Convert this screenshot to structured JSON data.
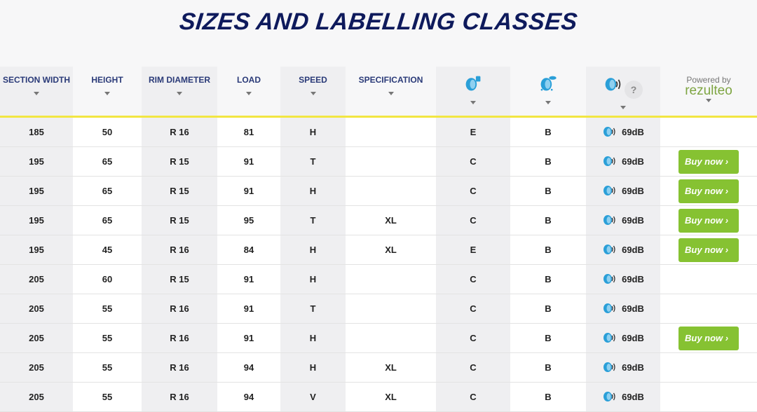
{
  "title": "SIZES AND LABELLING CLASSES",
  "columns": [
    "SECTION WIDTH",
    "HEIGHT",
    "RIM DIAMETER",
    "LOAD",
    "SPEED",
    "SPECIFICATION"
  ],
  "icon_columns": [
    "fuel-efficiency-icon",
    "wet-grip-icon",
    "noise-icon"
  ],
  "help_label": "?",
  "powered_by": "Powered by",
  "brand": "rezulteo",
  "buy_label": "Buy now ›",
  "colors": {
    "title": "#0e1a5c",
    "accent_line": "#f2e642",
    "buy_button": "#86c232",
    "icon_blue": "#2a9fd8"
  },
  "rows": [
    {
      "width": "185",
      "height": "50",
      "rim": "R 16",
      "load": "81",
      "speed": "H",
      "spec": "",
      "fuel": "E",
      "wet": "B",
      "noise": "69dB",
      "buy": false
    },
    {
      "width": "195",
      "height": "65",
      "rim": "R 15",
      "load": "91",
      "speed": "T",
      "spec": "",
      "fuel": "C",
      "wet": "B",
      "noise": "69dB",
      "buy": true
    },
    {
      "width": "195",
      "height": "65",
      "rim": "R 15",
      "load": "91",
      "speed": "H",
      "spec": "",
      "fuel": "C",
      "wet": "B",
      "noise": "69dB",
      "buy": true
    },
    {
      "width": "195",
      "height": "65",
      "rim": "R 15",
      "load": "95",
      "speed": "T",
      "spec": "XL",
      "fuel": "C",
      "wet": "B",
      "noise": "69dB",
      "buy": true
    },
    {
      "width": "195",
      "height": "45",
      "rim": "R 16",
      "load": "84",
      "speed": "H",
      "spec": "XL",
      "fuel": "E",
      "wet": "B",
      "noise": "69dB",
      "buy": true
    },
    {
      "width": "205",
      "height": "60",
      "rim": "R 15",
      "load": "91",
      "speed": "H",
      "spec": "",
      "fuel": "C",
      "wet": "B",
      "noise": "69dB",
      "buy": false
    },
    {
      "width": "205",
      "height": "55",
      "rim": "R 16",
      "load": "91",
      "speed": "T",
      "spec": "",
      "fuel": "C",
      "wet": "B",
      "noise": "69dB",
      "buy": false
    },
    {
      "width": "205",
      "height": "55",
      "rim": "R 16",
      "load": "91",
      "speed": "H",
      "spec": "",
      "fuel": "C",
      "wet": "B",
      "noise": "69dB",
      "buy": true
    },
    {
      "width": "205",
      "height": "55",
      "rim": "R 16",
      "load": "94",
      "speed": "H",
      "spec": "XL",
      "fuel": "C",
      "wet": "B",
      "noise": "69dB",
      "buy": false
    },
    {
      "width": "205",
      "height": "55",
      "rim": "R 16",
      "load": "94",
      "speed": "V",
      "spec": "XL",
      "fuel": "C",
      "wet": "B",
      "noise": "69dB",
      "buy": false
    }
  ]
}
